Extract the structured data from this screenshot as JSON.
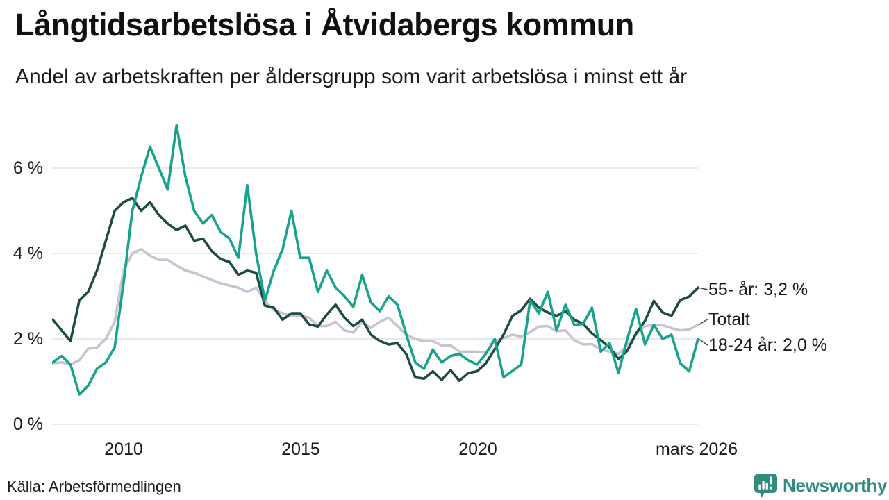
{
  "header": {
    "title": "Långtidsarbetslösa i Åtvidabergs kommun",
    "subtitle": "Andel av arbetskraften per åldersgrupp som varit arbetslösa i minst ett år"
  },
  "chart_data": {
    "type": "line",
    "title": "Långtidsarbetslösa i Åtvidabergs kommun",
    "x_start": 2008.0,
    "x_step": 0.25,
    "x_end": 2026.25,
    "ylim": [
      0,
      7.2
    ],
    "grid": true,
    "grid_color": "#e3e3e3",
    "connector_color": "#444444",
    "y_ticks": [
      {
        "value": 6,
        "label": "6 %"
      },
      {
        "value": 4,
        "label": "4 %"
      },
      {
        "value": 2,
        "label": "2 %"
      },
      {
        "value": 0,
        "label": "0 %"
      }
    ],
    "x_ticks": [
      {
        "value": 2010,
        "label": "2010"
      },
      {
        "value": 2015,
        "label": "2015"
      },
      {
        "value": 2020,
        "label": "2020"
      },
      {
        "value": 2026.25,
        "label": "mars 2026"
      }
    ],
    "legend_position": "right-end-labels",
    "series": [
      {
        "name": "Totalt",
        "end_label": "Totalt",
        "color": "#c6c4d3",
        "values": [
          1.43,
          1.45,
          1.4,
          1.5,
          1.77,
          1.8,
          2.0,
          2.4,
          3.6,
          4.0,
          4.1,
          3.95,
          3.85,
          3.85,
          3.72,
          3.6,
          3.55,
          3.46,
          3.38,
          3.3,
          3.25,
          3.2,
          3.1,
          3.2,
          2.9,
          2.67,
          2.6,
          2.55,
          2.55,
          2.5,
          2.3,
          2.3,
          2.4,
          2.2,
          2.15,
          2.4,
          2.26,
          2.4,
          2.5,
          2.3,
          2.1,
          2.0,
          1.95,
          1.95,
          1.85,
          1.85,
          1.7,
          1.7,
          1.7,
          1.68,
          1.95,
          2.02,
          2.1,
          2.05,
          2.16,
          2.29,
          2.3,
          2.18,
          2.2,
          1.97,
          1.87,
          1.88,
          1.75,
          1.7,
          1.65,
          1.85,
          2.1,
          2.3,
          2.33,
          2.32,
          2.25,
          2.2,
          2.22,
          2.33
        ]
      },
      {
        "name": "55- år",
        "end_label": "55- år: 3,2 %",
        "end_value_text": "3,2 %",
        "color": "#1d4a42",
        "values": [
          2.45,
          2.2,
          1.95,
          2.9,
          3.1,
          3.6,
          4.3,
          5.0,
          5.2,
          5.3,
          5.0,
          5.2,
          4.9,
          4.7,
          4.55,
          4.65,
          4.3,
          4.35,
          4.05,
          3.87,
          3.8,
          3.5,
          3.6,
          3.55,
          2.78,
          2.73,
          2.45,
          2.6,
          2.6,
          2.34,
          2.29,
          2.57,
          2.8,
          2.5,
          2.3,
          2.45,
          2.1,
          1.95,
          1.87,
          1.9,
          1.64,
          1.1,
          1.07,
          1.24,
          1.04,
          1.27,
          1.02,
          1.2,
          1.24,
          1.43,
          1.76,
          2.1,
          2.54,
          2.67,
          2.94,
          2.73,
          2.62,
          2.54,
          2.65,
          2.45,
          2.35,
          2.13,
          1.97,
          1.8,
          1.53,
          1.72,
          2.13,
          2.42,
          2.89,
          2.62,
          2.54,
          2.91,
          2.99,
          3.2
        ]
      },
      {
        "name": "18-24 år",
        "end_label": "18-24 år: 2,0 %",
        "end_value_text": "2,0 %",
        "color": "#16a28c",
        "values": [
          1.45,
          1.6,
          1.4,
          0.7,
          0.9,
          1.3,
          1.45,
          1.8,
          3.3,
          5.0,
          5.8,
          6.5,
          6.0,
          5.5,
          7.0,
          5.8,
          5.0,
          4.7,
          4.9,
          4.5,
          4.35,
          3.9,
          5.6,
          4.0,
          2.9,
          3.6,
          4.1,
          5.0,
          3.9,
          3.9,
          3.1,
          3.6,
          3.2,
          3.0,
          2.75,
          3.5,
          2.85,
          2.65,
          3.0,
          2.8,
          2.1,
          1.45,
          1.3,
          1.75,
          1.45,
          1.6,
          1.65,
          1.5,
          1.4,
          1.65,
          2.0,
          1.1,
          1.25,
          1.4,
          2.9,
          2.6,
          3.1,
          2.2,
          2.8,
          2.33,
          2.35,
          2.73,
          1.7,
          1.9,
          1.2,
          2.0,
          2.7,
          1.87,
          2.33,
          2.0,
          2.1,
          1.43,
          1.24,
          2.0
        ]
      }
    ]
  },
  "footer": {
    "source": "Källa: Arbetsförmedlingen",
    "brand": "Newsworthy",
    "brand_color": "#2f8c81"
  }
}
